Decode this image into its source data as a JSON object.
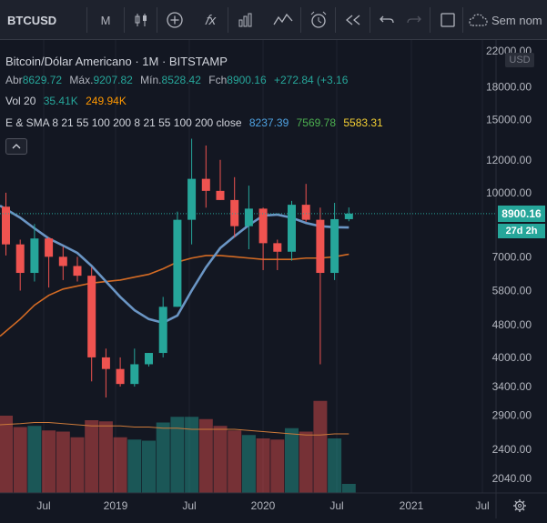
{
  "toolbar": {
    "symbol": "BTCUSD",
    "interval": "M",
    "search_placeholder": "Sem nom"
  },
  "legend": {
    "title": "Bitcoin/Dólar Americano · 1M · BITSTAMP",
    "open_label": "Abr",
    "open": "8629.72",
    "high_label": "Máx.",
    "high": "9207.82",
    "low_label": "Mín.",
    "low": "8528.42",
    "close_label": "Fch",
    "close": "8900.16",
    "change": "+272.84 (+3.16",
    "vol_label": "Vol 20",
    "vol_a": "35.41K",
    "vol_b": "249.94K",
    "indicator_label": "E & SMA 8 21 55 100 200 8 21 55 100 200 close",
    "ind_a": "8237.39",
    "ind_b": "7569.78",
    "ind_c": "5583.31"
  },
  "price_axis": {
    "currency": "USD",
    "ticks": [
      "22000.00",
      "18000.00",
      "15000.00",
      "12000.00",
      "10000.00",
      "8900.16",
      "7000.00",
      "5800.00",
      "4800.00",
      "4000.00",
      "3400.00",
      "2900.00",
      "2400.00",
      "2040.00"
    ],
    "last_price": "8900.16",
    "countdown": "27d 2h"
  },
  "time_axis": {
    "ticks": [
      "Jul",
      "2019",
      "Jul",
      "2020",
      "Jul",
      "2021",
      "Jul"
    ]
  },
  "colors": {
    "up": "#26a69a",
    "down": "#ef5350",
    "ema": "#6a95c4",
    "sma": "#d46b24",
    "vol_ma": "#cc7a3a",
    "indicator_a": "#4fa3e3",
    "indicator_b": "#4caf50",
    "indicator_c": "#f5d033"
  },
  "chart_data": {
    "type": "candlestick",
    "x": [
      "2018-05",
      "2018-06",
      "2018-07",
      "2018-08",
      "2018-09",
      "2018-10",
      "2018-11",
      "2018-12",
      "2019-01",
      "2019-02",
      "2019-03",
      "2019-04",
      "2019-05",
      "2019-06",
      "2019-07",
      "2019-08",
      "2019-09",
      "2019-10",
      "2019-11",
      "2019-12",
      "2020-01",
      "2020-02",
      "2020-03",
      "2020-04",
      "2020-05"
    ],
    "series": [
      {
        "type": "candlestick",
        "values": [
          {
            "o": 9250,
            "h": 10000,
            "l": 7050,
            "c": 7500
          },
          {
            "o": 7500,
            "h": 7700,
            "l": 5800,
            "c": 6400
          },
          {
            "o": 6400,
            "h": 8400,
            "l": 6100,
            "c": 7750
          },
          {
            "o": 7750,
            "h": 7800,
            "l": 5900,
            "c": 7000
          },
          {
            "o": 7000,
            "h": 7400,
            "l": 6150,
            "c": 6650
          },
          {
            "o": 6650,
            "h": 7000,
            "l": 6100,
            "c": 6300
          },
          {
            "o": 6300,
            "h": 6600,
            "l": 3500,
            "c": 4000
          },
          {
            "o": 4000,
            "h": 4200,
            "l": 3200,
            "c": 3750
          },
          {
            "o": 3750,
            "h": 4000,
            "l": 3400,
            "c": 3450
          },
          {
            "o": 3450,
            "h": 4200,
            "l": 3400,
            "c": 3850
          },
          {
            "o": 3850,
            "h": 4100,
            "l": 3800,
            "c": 4100
          },
          {
            "o": 4100,
            "h": 5600,
            "l": 4000,
            "c": 5300
          },
          {
            "o": 5300,
            "h": 9000,
            "l": 5300,
            "c": 8600
          },
          {
            "o": 8600,
            "h": 13500,
            "l": 7500,
            "c": 10800
          },
          {
            "o": 10800,
            "h": 13000,
            "l": 9200,
            "c": 10100
          },
          {
            "o": 10100,
            "h": 12000,
            "l": 9600,
            "c": 9600
          },
          {
            "o": 9600,
            "h": 10900,
            "l": 7800,
            "c": 8300
          },
          {
            "o": 8300,
            "h": 10400,
            "l": 7300,
            "c": 9150
          },
          {
            "o": 9150,
            "h": 9200,
            "l": 6500,
            "c": 7550
          },
          {
            "o": 7550,
            "h": 7700,
            "l": 6500,
            "c": 7200
          },
          {
            "o": 7200,
            "h": 9550,
            "l": 6850,
            "c": 9350
          },
          {
            "o": 9350,
            "h": 10500,
            "l": 8500,
            "c": 8600
          },
          {
            "o": 8600,
            "h": 9200,
            "l": 3850,
            "c": 6400
          },
          {
            "o": 6400,
            "h": 9450,
            "l": 6150,
            "c": 8630
          },
          {
            "o": 8630,
            "h": 9210,
            "l": 8530,
            "c": 8900
          }
        ]
      },
      {
        "name": "EMA",
        "type": "line",
        "values": [
          9300,
          8700,
          8200,
          7750,
          7450,
          7150,
          6650,
          6100,
          5600,
          5200,
          4950,
          4850,
          5050,
          5800,
          6600,
          7350,
          7850,
          8350,
          8800,
          8850,
          8700,
          8450,
          8300,
          8250,
          8240
        ]
      },
      {
        "name": "SMA",
        "type": "line",
        "values": [
          4500,
          4950,
          5350,
          5650,
          5850,
          5950,
          6050,
          6100,
          6150,
          6250,
          6350,
          6550,
          6800,
          6950,
          7050,
          7050,
          7000,
          6950,
          6900,
          6900,
          6900,
          6950,
          6950,
          7000,
          7100
        ]
      },
      {
        "name": "Volume",
        "type": "bar",
        "values": [
          3.4,
          2.9,
          2.95,
          2.75,
          2.7,
          2.45,
          3.2,
          3.15,
          2.45,
          2.35,
          2.3,
          3.1,
          3.35,
          3.35,
          3.25,
          2.95,
          2.75,
          2.55,
          2.4,
          2.35,
          2.85,
          2.7,
          4.05,
          2.4,
          0.4
        ]
      }
    ]
  }
}
